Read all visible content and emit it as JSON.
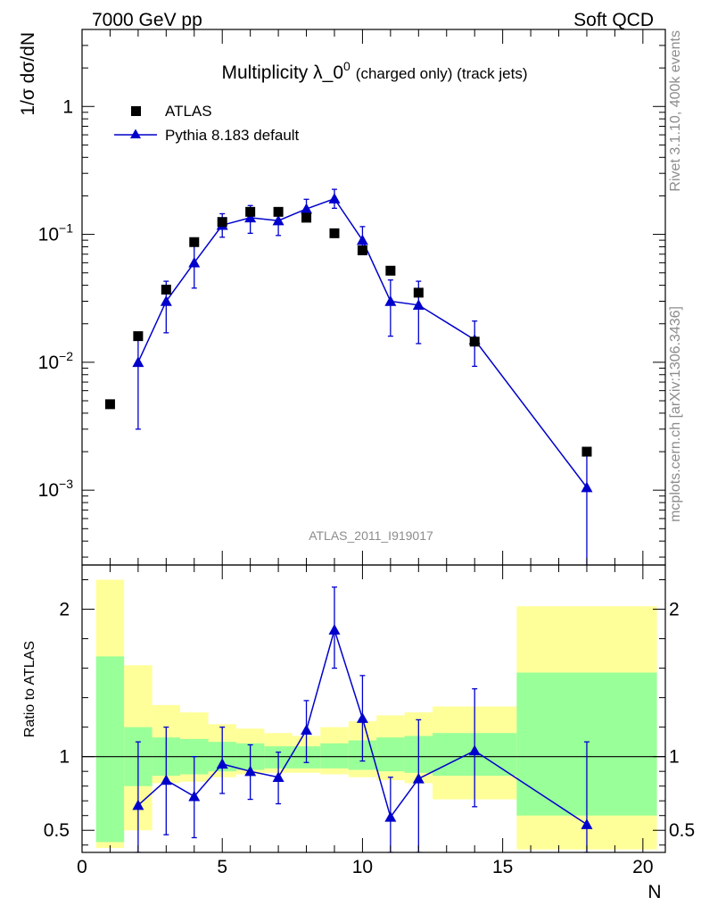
{
  "header": {
    "left": "7000 GeV pp",
    "right": "Soft QCD"
  },
  "main_title": {
    "prefix": "Multiplicity λ_0",
    "superscript": "0",
    "suffix": "(charged only) (track jets)"
  },
  "watermark": "ATLAS_2011_I919017",
  "side_labels": {
    "rivet": "Rivet 3.1.10,  400k events",
    "mcplots": "mcplots.cern.ch [arXiv:1306.3436]"
  },
  "colors": {
    "data": "#000000",
    "mc": "#0000cc",
    "band_inner": "#99ff99",
    "band_outer": "#ffff99"
  },
  "chart_data": [
    {
      "type": "scatter",
      "panel": "main",
      "ylabel": "1/σ dσ/dN",
      "yscale": "log",
      "ylim": [
        0.00026,
        4.0
      ],
      "xlim": [
        0,
        20.8
      ],
      "ytick_labels": [
        {
          "value": 1,
          "label": "1",
          "exp": ""
        },
        {
          "value": 0.1,
          "label": "10",
          "exp": "−1"
        },
        {
          "value": 0.01,
          "label": "10",
          "exp": "−2"
        },
        {
          "value": 0.001,
          "label": "10",
          "exp": "−3"
        }
      ],
      "legend": {
        "position": "top-left",
        "entries": [
          "ATLAS",
          "Pythia 8.183 default"
        ]
      },
      "series": [
        {
          "name": "ATLAS",
          "marker": "square",
          "points": [
            {
              "x": 1,
              "y": 0.0047
            },
            {
              "x": 2,
              "y": 0.016
            },
            {
              "x": 3,
              "y": 0.037
            },
            {
              "x": 4,
              "y": 0.087
            },
            {
              "x": 5,
              "y": 0.125
            },
            {
              "x": 6,
              "y": 0.15
            },
            {
              "x": 7,
              "y": 0.15
            },
            {
              "x": 8,
              "y": 0.135
            },
            {
              "x": 9,
              "y": 0.102
            },
            {
              "x": 10,
              "y": 0.075
            },
            {
              "x": 11,
              "y": 0.052
            },
            {
              "x": 12,
              "y": 0.035
            },
            {
              "x": 14,
              "y": 0.0145
            },
            {
              "x": 18,
              "y": 0.002
            }
          ]
        },
        {
          "name": "Pythia 8.183 default",
          "marker": "triangle",
          "line": true,
          "points": [
            {
              "x": 2,
              "y": 0.01,
              "lo": 0.003,
              "hi": 0.017
            },
            {
              "x": 3,
              "y": 0.03,
              "lo": 0.017,
              "hi": 0.043
            },
            {
              "x": 4,
              "y": 0.06,
              "lo": 0.038,
              "hi": 0.082
            },
            {
              "x": 5,
              "y": 0.118,
              "lo": 0.095,
              "hi": 0.145
            },
            {
              "x": 6,
              "y": 0.135,
              "lo": 0.102,
              "hi": 0.168
            },
            {
              "x": 7,
              "y": 0.128,
              "lo": 0.098,
              "hi": 0.158
            },
            {
              "x": 8,
              "y": 0.158,
              "lo": 0.13,
              "hi": 0.188
            },
            {
              "x": 9,
              "y": 0.19,
              "lo": 0.16,
              "hi": 0.225
            },
            {
              "x": 10,
              "y": 0.09,
              "lo": 0.07,
              "hi": 0.115
            },
            {
              "x": 11,
              "y": 0.03,
              "lo": 0.016,
              "hi": 0.044
            },
            {
              "x": 12,
              "y": 0.028,
              "lo": 0.014,
              "hi": 0.043
            },
            {
              "x": 14,
              "y": 0.015,
              "lo": 0.0093,
              "hi": 0.021
            },
            {
              "x": 18,
              "y": 0.00105,
              "lo": 0.0002,
              "hi": 0.0019
            }
          ]
        }
      ]
    },
    {
      "type": "scatter",
      "panel": "ratio",
      "xlabel": "N",
      "ylabel": "Ratio to ATLAS",
      "ylim": [
        0.35,
        2.3
      ],
      "xlim": [
        0,
        20.8
      ],
      "xticks": [
        0,
        5,
        10,
        15,
        20
      ],
      "yticks_labeled": [
        0.5,
        1,
        2
      ],
      "reference_line": 1,
      "bands": [
        {
          "x0": 0.5,
          "x1": 1.5,
          "inner": [
            0.42,
            1.68
          ],
          "outer": [
            0.38,
            2.2
          ]
        },
        {
          "x0": 1.5,
          "x1": 2.5,
          "inner": [
            0.8,
            1.2
          ],
          "outer": [
            0.5,
            1.62
          ]
        },
        {
          "x0": 2.5,
          "x1": 3.5,
          "inner": [
            0.87,
            1.13
          ],
          "outer": [
            0.82,
            1.35
          ]
        },
        {
          "x0": 3.5,
          "x1": 4.5,
          "inner": [
            0.88,
            1.12
          ],
          "outer": [
            0.83,
            1.3
          ]
        },
        {
          "x0": 4.5,
          "x1": 5.5,
          "inner": [
            0.9,
            1.1
          ],
          "outer": [
            0.86,
            1.22
          ]
        },
        {
          "x0": 5.5,
          "x1": 6.5,
          "inner": [
            0.91,
            1.09
          ],
          "outer": [
            0.88,
            1.19
          ]
        },
        {
          "x0": 6.5,
          "x1": 7.5,
          "inner": [
            0.92,
            1.07
          ],
          "outer": [
            0.89,
            1.16
          ]
        },
        {
          "x0": 7.5,
          "x1": 8.5,
          "inner": [
            0.92,
            1.07
          ],
          "outer": [
            0.89,
            1.14
          ]
        },
        {
          "x0": 8.5,
          "x1": 9.5,
          "inner": [
            0.92,
            1.09
          ],
          "outer": [
            0.88,
            1.2
          ]
        },
        {
          "x0": 9.5,
          "x1": 10.5,
          "inner": [
            0.91,
            1.11
          ],
          "outer": [
            0.86,
            1.24
          ]
        },
        {
          "x0": 10.5,
          "x1": 11.5,
          "inner": [
            0.9,
            1.13
          ],
          "outer": [
            0.84,
            1.28
          ]
        },
        {
          "x0": 11.5,
          "x1": 12.5,
          "inner": [
            0.89,
            1.14
          ],
          "outer": [
            0.82,
            1.3
          ]
        },
        {
          "x0": 12.5,
          "x1": 15.5,
          "inner": [
            0.87,
            1.16
          ],
          "outer": [
            0.71,
            1.34
          ]
        },
        {
          "x0": 15.5,
          "x1": 20.5,
          "inner": [
            0.6,
            1.57
          ],
          "outer": [
            0.37,
            2.02
          ]
        }
      ],
      "series": [
        {
          "name": "Pythia 8.183 default / ATLAS",
          "marker": "triangle",
          "line": true,
          "points": [
            {
              "x": 2,
              "y": 0.67,
              "lo": 0.35,
              "hi": 1.1
            },
            {
              "x": 3,
              "y": 0.84,
              "lo": 0.47,
              "hi": 1.2
            },
            {
              "x": 4,
              "y": 0.73,
              "lo": 0.45,
              "hi": 1.0
            },
            {
              "x": 5,
              "y": 0.95,
              "lo": 0.75,
              "hi": 1.2
            },
            {
              "x": 6,
              "y": 0.9,
              "lo": 0.71,
              "hi": 1.08
            },
            {
              "x": 7,
              "y": 0.86,
              "lo": 0.68,
              "hi": 1.03
            },
            {
              "x": 8,
              "y": 1.18,
              "lo": 0.96,
              "hi": 1.38
            },
            {
              "x": 9,
              "y": 1.86,
              "lo": 1.6,
              "hi": 2.15
            },
            {
              "x": 10,
              "y": 1.26,
              "lo": 0.97,
              "hi": 1.55
            },
            {
              "x": 11,
              "y": 0.59,
              "lo": 0.35,
              "hi": 0.86
            },
            {
              "x": 12,
              "y": 0.85,
              "lo": 0.35,
              "hi": 1.25
            },
            {
              "x": 14,
              "y": 1.04,
              "lo": 0.66,
              "hi": 1.46
            },
            {
              "x": 18,
              "y": 0.54,
              "lo": 0.35,
              "hi": 1.1
            }
          ]
        }
      ]
    }
  ]
}
